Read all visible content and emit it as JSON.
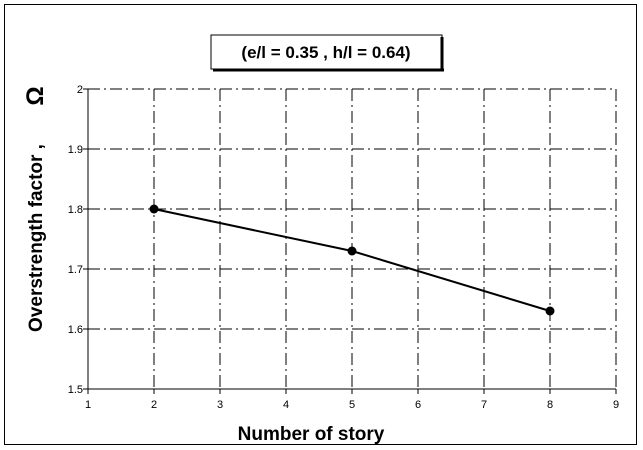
{
  "chart_data": {
    "type": "line",
    "title": "(e/l = 0.35 , h/l = 0.64)",
    "xlabel": "Number of story",
    "ylabel": "Overstrength factor ,",
    "ylabel_symbol": "Ω",
    "xlim": [
      1,
      9
    ],
    "ylim": [
      1.5,
      2.0
    ],
    "xticks": [
      "1",
      "2",
      "3",
      "4",
      "5",
      "6",
      "7",
      "8",
      "9"
    ],
    "yticks": [
      "1.5",
      "1.6",
      "1.7",
      "1.8",
      "1.9",
      "2"
    ],
    "grid": true,
    "grid_style": "dash-dot",
    "series": [
      {
        "x": [
          2,
          5,
          8
        ],
        "y": [
          1.8,
          1.73,
          1.63
        ],
        "color": "#000000",
        "marker": "circle"
      }
    ]
  }
}
